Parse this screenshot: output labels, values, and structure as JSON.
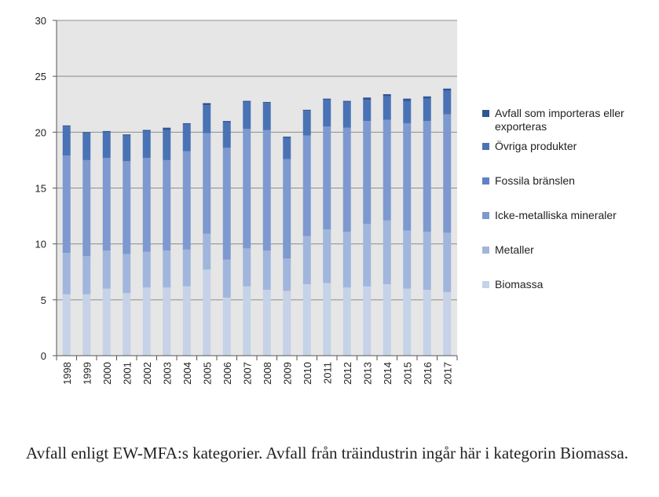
{
  "chart_data": {
    "type": "bar",
    "stacked": true,
    "categories": [
      "1998",
      "1999",
      "2000",
      "2001",
      "2002",
      "2003",
      "2004",
      "2005",
      "2006",
      "2007",
      "2008",
      "2009",
      "2010",
      "2011",
      "2012",
      "2013",
      "2014",
      "2015",
      "2016",
      "2017"
    ],
    "series": [
      {
        "name": "Biomassa",
        "color": "#c5d2e8",
        "values": [
          5.5,
          5.5,
          6.0,
          5.6,
          6.1,
          6.1,
          6.2,
          7.7,
          5.2,
          6.2,
          5.9,
          5.8,
          6.4,
          6.5,
          6.1,
          6.2,
          6.4,
          6.0,
          5.9,
          5.7
        ]
      },
      {
        "name": "Metaller",
        "color": "#a1b6dc",
        "values": [
          3.7,
          3.4,
          3.4,
          3.5,
          3.2,
          3.3,
          3.3,
          3.2,
          3.4,
          3.4,
          3.5,
          2.9,
          4.3,
          4.8,
          5.0,
          5.6,
          5.7,
          5.2,
          5.2,
          5.3
        ]
      },
      {
        "name": "Icke-metalliska mineraler",
        "color": "#7d99cf",
        "values": [
          8.7,
          8.6,
          8.3,
          8.3,
          8.4,
          8.1,
          8.8,
          9.0,
          10.0,
          10.7,
          10.8,
          8.9,
          9.0,
          9.2,
          9.3,
          9.2,
          9.0,
          9.6,
          9.9,
          10.6
        ]
      },
      {
        "name": "Fossila bränslen",
        "color": "#5e82c4",
        "values": [
          0,
          0,
          0,
          0,
          0,
          0,
          0,
          0,
          0,
          0,
          0,
          0,
          0,
          0,
          0,
          0,
          0,
          0,
          0,
          0
        ]
      },
      {
        "name": "Övriga produkter",
        "color": "#4a73b6",
        "values": [
          2.6,
          2.4,
          2.3,
          2.3,
          2.4,
          2.7,
          2.4,
          2.5,
          2.3,
          2.4,
          2.4,
          1.9,
          2.2,
          2.4,
          2.3,
          1.9,
          2.1,
          2.0,
          2.0,
          2.1
        ]
      },
      {
        "name": "Avfall som importeras eller exporteras",
        "color": "#2f5597",
        "values": [
          0.1,
          0.1,
          0.1,
          0.1,
          0.1,
          0.2,
          0.1,
          0.2,
          0.1,
          0.1,
          0.1,
          0.1,
          0.1,
          0.1,
          0.1,
          0.2,
          0.2,
          0.2,
          0.2,
          0.2
        ]
      }
    ],
    "legend_order": [
      "Avfall som importeras eller exporteras",
      "Övriga produkter",
      "Fossila bränslen",
      "Icke-metalliska mineraler",
      "Metaller",
      "Biomassa"
    ],
    "ylim": [
      0,
      30
    ],
    "yticks": [
      0,
      5,
      10,
      15,
      20,
      25,
      30
    ],
    "grid": true,
    "legend_placement": "right",
    "plot_background": "#e6e6e6",
    "gridline_color": "#8c8c8c"
  },
  "caption": "Avfall enligt EW-MFA:s kategorier. Avfall från träindustrin ingår här i kategorin Biomassa."
}
